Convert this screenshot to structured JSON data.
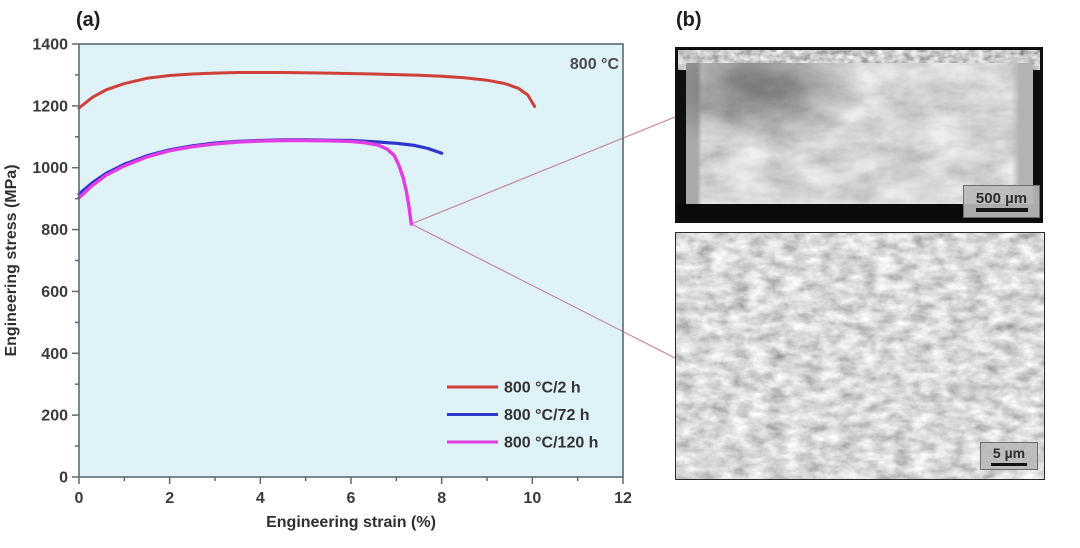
{
  "figure": {
    "panel_a_label": "(a)",
    "panel_b_label": "(b)"
  },
  "chart_data": {
    "type": "line",
    "title": "",
    "xlabel": "Engineering strain (%)",
    "ylabel": "Engineering stress (MPa)",
    "xlim": [
      0,
      12
    ],
    "ylim": [
      0,
      1400
    ],
    "xticks": [
      0,
      2,
      4,
      6,
      8,
      10,
      12
    ],
    "yticks": [
      0,
      200,
      400,
      600,
      800,
      1000,
      1200,
      1400
    ],
    "x_minor_step": 1,
    "y_minor_step": 100,
    "grid": false,
    "annotation": "800 °C",
    "legend_position": "lower right",
    "plot_bg": "#def2f8",
    "series": [
      {
        "name": "800 °C/2 h",
        "color": "#cf4038",
        "width": 3.0,
        "points": [
          [
            0,
            1193
          ],
          [
            0.3,
            1228
          ],
          [
            0.6,
            1252
          ],
          [
            1,
            1272
          ],
          [
            1.5,
            1289
          ],
          [
            2,
            1298
          ],
          [
            2.5,
            1303
          ],
          [
            3,
            1306
          ],
          [
            3.5,
            1308
          ],
          [
            4.5,
            1308
          ],
          [
            5.5,
            1306
          ],
          [
            6.5,
            1303
          ],
          [
            7.5,
            1299
          ],
          [
            8,
            1296
          ],
          [
            8.5,
            1291
          ],
          [
            9,
            1283
          ],
          [
            9.4,
            1272
          ],
          [
            9.7,
            1256
          ],
          [
            9.9,
            1235
          ],
          [
            10.05,
            1198
          ]
        ]
      },
      {
        "name": "800 °C/72 h",
        "color": "#2e36cd",
        "width": 3.2,
        "points": [
          [
            0,
            915
          ],
          [
            0.3,
            952
          ],
          [
            0.6,
            982
          ],
          [
            1,
            1011
          ],
          [
            1.5,
            1039
          ],
          [
            2,
            1058
          ],
          [
            2.5,
            1071
          ],
          [
            3,
            1080
          ],
          [
            3.5,
            1085
          ],
          [
            4,
            1088
          ],
          [
            4.5,
            1090
          ],
          [
            5,
            1090
          ],
          [
            5.5,
            1089
          ],
          [
            6,
            1088
          ],
          [
            6.5,
            1084
          ],
          [
            7,
            1079
          ],
          [
            7.4,
            1072
          ],
          [
            7.7,
            1062
          ],
          [
            8,
            1047
          ]
        ]
      },
      {
        "name": "800 °C/120 h",
        "color": "#e23de2",
        "width": 3.4,
        "points": [
          [
            0,
            903
          ],
          [
            0.3,
            943
          ],
          [
            0.6,
            976
          ],
          [
            1,
            1006
          ],
          [
            1.5,
            1035
          ],
          [
            2,
            1055
          ],
          [
            2.5,
            1068
          ],
          [
            3,
            1077
          ],
          [
            3.5,
            1083
          ],
          [
            4,
            1086
          ],
          [
            4.5,
            1088
          ],
          [
            5,
            1088
          ],
          [
            5.5,
            1087
          ],
          [
            6,
            1085
          ],
          [
            6.3,
            1081
          ],
          [
            6.6,
            1073
          ],
          [
            6.8,
            1060
          ],
          [
            6.95,
            1040
          ],
          [
            7.05,
            1010
          ],
          [
            7.15,
            968
          ],
          [
            7.22,
            925
          ],
          [
            7.28,
            873
          ],
          [
            7.33,
            818
          ]
        ]
      }
    ]
  },
  "micrographs": {
    "top": {
      "scale_bar_label": "500 µm"
    },
    "bottom": {
      "scale_bar_label": "5 µm"
    }
  },
  "colors": {
    "connector_line": "#c77f9e",
    "axis": "#5d6b70",
    "text": "#3a3a3a",
    "canvas_bg": "#ffffff"
  }
}
